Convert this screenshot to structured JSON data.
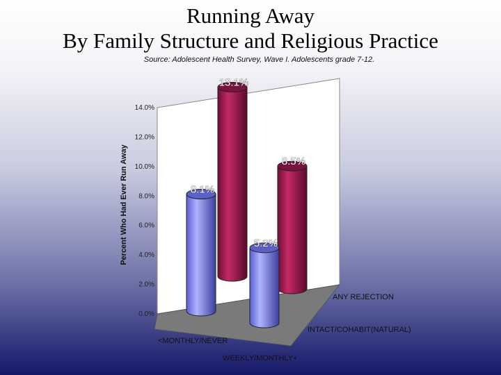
{
  "chart_data": {
    "type": "bar",
    "title_line1": "Running Away",
    "title_line2": "By Family Structure and Religious Practice",
    "subtitle": "Source: Adolescent Health Survey, Wave I. Adolescents grade 7-12.",
    "ylabel": "Percent Who Had Ever Run Away",
    "y_ticks": [
      "0.0%",
      "2.0%",
      "4.0%",
      "6.0%",
      "8.0%",
      "10.0%",
      "12.0%",
      "14.0%"
    ],
    "ylim": [
      0,
      14
    ],
    "categories": [
      "<MONTHLY/NEVER",
      "WEEKLY/MONTHLY+"
    ],
    "series": [
      {
        "name": "INTACT/COHABIT(NATURAL)",
        "values": [
          8.1,
          5.2
        ],
        "labels": [
          "8.1%",
          "5.2%"
        ],
        "color": "#8f95e8"
      },
      {
        "name": "ANY REJECTION",
        "values": [
          13.1,
          8.5
        ],
        "labels": [
          "13.1%",
          "8.5%"
        ],
        "color": "#a0184e"
      }
    ]
  }
}
